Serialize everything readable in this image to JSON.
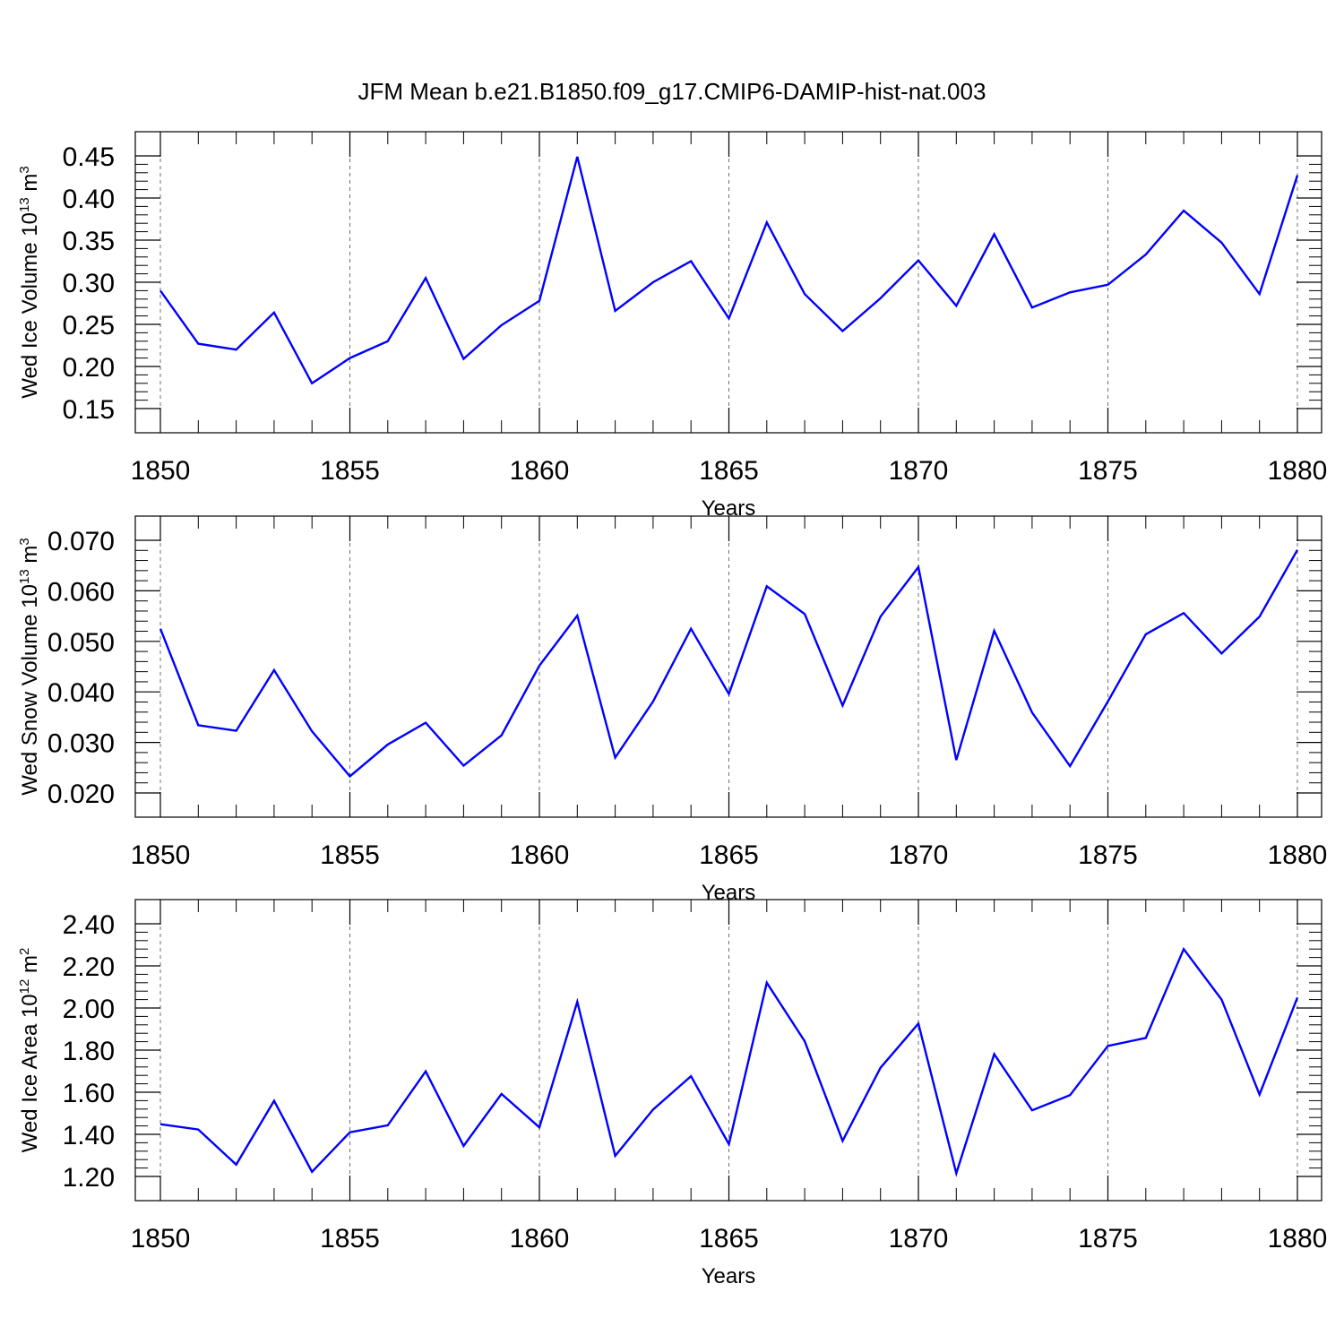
{
  "title": "JFM Mean b.e21.B1850.f09_g17.CMIP6-DAMIP-hist-nat.003",
  "chart_data": [
    {
      "type": "line",
      "xlabel": "Years",
      "ylabel": "Wed Ice Volume 10",
      "ylabel_exp": "13",
      "ylabel_unit": " m",
      "ylabel_unit_exp": "3",
      "xlim": [
        1850,
        1880
      ],
      "ylim": [
        0.15,
        0.45
      ],
      "x_ticks": [
        "1850",
        "1855",
        "1860",
        "1865",
        "1870",
        "1875",
        "1880"
      ],
      "y_ticks": [
        "0.15",
        "0.20",
        "0.25",
        "0.30",
        "0.35",
        "0.40",
        "0.45"
      ],
      "color": "#0000ff",
      "grid": "dashed vertical lines at major x ticks",
      "x": [
        1850,
        1851,
        1852,
        1853,
        1854,
        1855,
        1856,
        1857,
        1858,
        1859,
        1860,
        1861,
        1862,
        1863,
        1864,
        1865,
        1866,
        1867,
        1868,
        1869,
        1870,
        1871,
        1872,
        1873,
        1874,
        1875,
        1876,
        1877,
        1878,
        1879,
        1880
      ],
      "values": [
        0.29,
        0.227,
        0.22,
        0.264,
        0.18,
        0.21,
        0.23,
        0.305,
        0.209,
        0.249,
        0.278,
        0.449,
        0.266,
        0.3,
        0.325,
        0.257,
        0.371,
        0.286,
        0.242,
        0.281,
        0.326,
        0.272,
        0.357,
        0.27,
        0.288,
        0.297,
        0.333,
        0.385,
        0.347,
        0.286,
        0.427
      ]
    },
    {
      "type": "line",
      "xlabel": "Years",
      "ylabel": "Wed Snow Volume 10",
      "ylabel_exp": "13",
      "ylabel_unit": " m",
      "ylabel_unit_exp": "3",
      "xlim": [
        1850,
        1880
      ],
      "ylim": [
        0.02,
        0.07
      ],
      "x_ticks": [
        "1850",
        "1855",
        "1860",
        "1865",
        "1870",
        "1875",
        "1880"
      ],
      "y_ticks": [
        "0.020",
        "0.030",
        "0.040",
        "0.050",
        "0.060",
        "0.070"
      ],
      "color": "#0000ff",
      "grid": "dashed vertical lines at major x ticks",
      "x": [
        1850,
        1851,
        1852,
        1853,
        1854,
        1855,
        1856,
        1857,
        1858,
        1859,
        1860,
        1861,
        1862,
        1863,
        1864,
        1865,
        1866,
        1867,
        1868,
        1869,
        1870,
        1871,
        1872,
        1873,
        1874,
        1875,
        1876,
        1877,
        1878,
        1879,
        1880
      ],
      "values": [
        0.0525,
        0.0334,
        0.0323,
        0.0443,
        0.0322,
        0.0233,
        0.0296,
        0.0339,
        0.0254,
        0.0314,
        0.0452,
        0.0551,
        0.027,
        0.0381,
        0.0525,
        0.0396,
        0.0609,
        0.0554,
        0.0373,
        0.0549,
        0.0647,
        0.0265,
        0.0521,
        0.0359,
        0.0253,
        0.0381,
        0.0514,
        0.0556,
        0.0476,
        0.0549,
        0.0681
      ]
    },
    {
      "type": "line",
      "xlabel": "Years",
      "ylabel": "Wed Ice Area 10",
      "ylabel_exp": "12",
      "ylabel_unit": " m",
      "ylabel_unit_exp": "2",
      "xlim": [
        1850,
        1880
      ],
      "ylim": [
        1.2,
        2.4
      ],
      "x_ticks": [
        "1850",
        "1855",
        "1860",
        "1865",
        "1870",
        "1875",
        "1880"
      ],
      "y_ticks": [
        "1.20",
        "1.40",
        "1.60",
        "1.80",
        "2.00",
        "2.20",
        "2.40"
      ],
      "color": "#0000ff",
      "grid": "dashed vertical lines at major x ticks",
      "x": [
        1850,
        1851,
        1852,
        1853,
        1854,
        1855,
        1856,
        1857,
        1858,
        1859,
        1860,
        1861,
        1862,
        1863,
        1864,
        1865,
        1866,
        1867,
        1868,
        1869,
        1870,
        1871,
        1872,
        1873,
        1874,
        1875,
        1876,
        1877,
        1878,
        1879,
        1880
      ],
      "values": [
        1.448,
        1.423,
        1.256,
        1.559,
        1.222,
        1.41,
        1.443,
        1.699,
        1.345,
        1.592,
        1.433,
        2.03,
        1.298,
        1.518,
        1.676,
        1.353,
        2.12,
        1.842,
        1.369,
        1.716,
        1.926,
        1.215,
        1.781,
        1.514,
        1.586,
        1.82,
        1.858,
        2.28,
        2.04,
        1.589,
        2.05
      ]
    }
  ]
}
